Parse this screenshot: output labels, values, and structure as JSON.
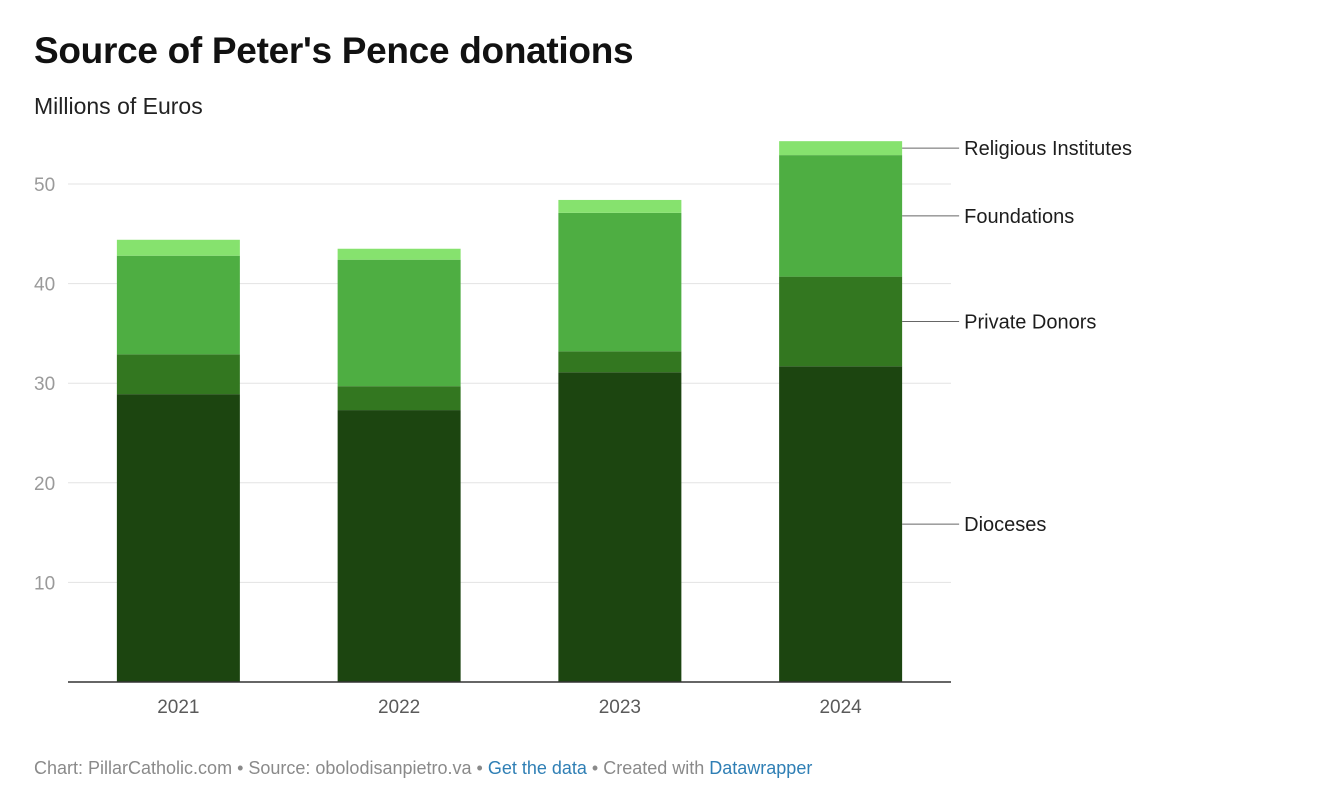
{
  "chart_data": {
    "type": "bar",
    "stacked": true,
    "title": "Source of Peter's Pence donations",
    "subtitle": "Millions of Euros",
    "categories": [
      "2021",
      "2022",
      "2023",
      "2024"
    ],
    "series": [
      {
        "name": "Dioceses",
        "color": "#1c4510",
        "values": [
          28.9,
          27.3,
          31.1,
          31.7
        ]
      },
      {
        "name": "Private Donors",
        "color": "#337720",
        "values": [
          4.0,
          2.4,
          2.1,
          9.0
        ]
      },
      {
        "name": "Foundations",
        "color": "#4eae42",
        "values": [
          9.9,
          12.7,
          13.9,
          12.2
        ]
      },
      {
        "name": "Religious Institutes",
        "color": "#86e26e",
        "values": [
          1.6,
          1.1,
          1.3,
          1.4
        ]
      }
    ],
    "y_ticks": [
      10,
      20,
      30,
      40,
      50
    ],
    "ylim": [
      0,
      55
    ],
    "grid": true,
    "legend": "direct labels on right"
  },
  "footer": {
    "prefix": "Chart: PillarCatholic.com • Source: obolodisanpietro.va • ",
    "get_data": "Get the data",
    "middle": " • Created with ",
    "tool": "Datawrapper"
  }
}
